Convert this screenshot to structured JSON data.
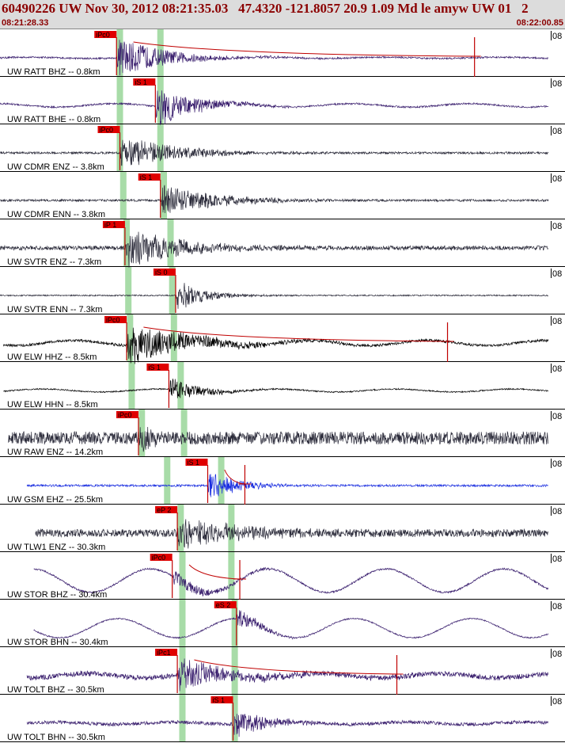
{
  "header": {
    "title": "60490226 UW Nov 30, 2012 08:21:35.03   47.4320 -121.8057 20.9 1.09 Md le amyw UW 01   2",
    "start_time": "08:21:28.33",
    "end_time": "08:22:00.85",
    "edge_label": "08"
  },
  "colors": {
    "trace": "#2b2b3a",
    "trace_purple": "#3a1f6e",
    "trace_blue": "#1a2ee0",
    "trace_black": "#000000",
    "pick_box": "#e00000",
    "pick_line": "#c00000",
    "phase_band": "#a8dca8",
    "coda_fit": "#c00000",
    "label_text": "#000000"
  },
  "chart_data": {
    "type": "line",
    "time_range": [
      "08:21:28.33",
      "08:22:00.85"
    ],
    "channels": [
      {
        "label": "UW RATT BHZ -- 0.8km",
        "color": "trace_purple",
        "pick_label": "iPc0",
        "pick_time": 6.9,
        "noise": 0.04,
        "amp": 1.0,
        "dur": 6.0,
        "long_period": 0.03,
        "coda": true,
        "coda_end": 28.1,
        "data_start": 0.0,
        "data_end": 32.5
      },
      {
        "label": "UW RATT BHE -- 0.8km",
        "color": "trace_purple",
        "pick_label": "iS 1",
        "pick_time": 9.2,
        "noise": 0.04,
        "amp": 1.0,
        "dur": 5.0,
        "long_period": 0.08,
        "coda": false,
        "data_start": 0.0,
        "data_end": 32.5
      },
      {
        "label": "UW CDMR ENZ -- 3.8km",
        "color": "trace",
        "pick_label": "iPc0",
        "pick_time": 7.1,
        "noise": 0.05,
        "amp": 0.85,
        "dur": 7.0,
        "long_period": 0.0,
        "coda": false,
        "data_start": 0.0,
        "data_end": 32.5
      },
      {
        "label": "UW CDMR ENN -- 3.8km",
        "color": "trace",
        "pick_label": "iS 1",
        "pick_time": 9.5,
        "noise": 0.05,
        "amp": 0.8,
        "dur": 7.0,
        "long_period": 0.0,
        "coda": false,
        "data_start": 0.0,
        "data_end": 32.5
      },
      {
        "label": "UW SVTR ENZ -- 7.3km",
        "color": "trace",
        "pick_label": "iP 1",
        "pick_time": 7.4,
        "noise": 0.1,
        "amp": 0.95,
        "dur": 7.0,
        "long_period": 0.0,
        "coda": false,
        "data_start": 0.0,
        "data_end": 32.5
      },
      {
        "label": "UW SVTR ENN -- 7.3km",
        "color": "trace",
        "pick_label": "iS 0",
        "pick_time": 10.4,
        "noise": 0.03,
        "amp": 0.8,
        "dur": 3.5,
        "long_period": 0.0,
        "coda": false,
        "data_start": 0.0,
        "data_end": 32.5
      },
      {
        "label": "UW ELW HHZ -- 8.5km",
        "color": "trace_black",
        "pick_label": "iPc0",
        "pick_time": 7.5,
        "noise": 0.06,
        "amp": 1.0,
        "dur": 8.0,
        "long_period": 0.12,
        "coda": true,
        "coda_end": 26.5,
        "data_start": 0.2,
        "data_end": 32.8
      },
      {
        "label": "UW ELW HHN -- 8.5km",
        "color": "trace_black",
        "pick_label": "iS 1",
        "pick_time": 10.0,
        "noise": 0.03,
        "amp": 0.6,
        "dur": 4.0,
        "long_period": 0.07,
        "coda": false,
        "data_start": 0.2,
        "data_end": 32.8
      },
      {
        "label": "UW RAW ENZ -- 14.2km",
        "color": "trace",
        "pick_label": "iPc0",
        "pick_time": 8.2,
        "noise": 0.3,
        "amp": 0.9,
        "dur": 1.5,
        "long_period": 0.0,
        "coda": false,
        "data_start": 0.5,
        "data_end": 33.2
      },
      {
        "label": "UW GSM EHZ -- 25.5km",
        "color": "trace_blue",
        "pick_label": "iS 1",
        "pick_time": 12.3,
        "noise": 0.05,
        "amp": 0.7,
        "dur": 4.0,
        "long_period": 0.0,
        "coda": true,
        "coda_end": 14.5,
        "data_start": 1.6,
        "data_end": 34.3
      },
      {
        "label": "UW TLW1 ENZ -- 30.3km",
        "color": "trace",
        "pick_label": "eP 2",
        "pick_time": 10.5,
        "noise": 0.18,
        "amp": 0.85,
        "dur": 7.0,
        "long_period": 0.0,
        "coda": false,
        "data_start": 2.1,
        "data_end": 34.6
      },
      {
        "label": "UW STOR BHZ -- 30.4km",
        "color": "trace_purple",
        "pick_label": "iPc0",
        "pick_time": 10.2,
        "noise": 0.04,
        "amp": 0.4,
        "dur": 5.0,
        "long_period": 0.55,
        "coda": true,
        "coda_end": 14.2,
        "data_start": 2.0,
        "data_end": 34.6
      },
      {
        "label": "UW STOR BHN -- 30.4km",
        "color": "trace_purple",
        "pick_label": "eS 2",
        "pick_time": 14.0,
        "noise": 0.03,
        "amp": 0.5,
        "dur": 3.0,
        "long_period": 0.45,
        "coda": false,
        "data_start": 2.0,
        "data_end": 34.6
      },
      {
        "label": "UW TOLT BHZ -- 30.5km",
        "color": "trace_purple",
        "pick_label": "iPc1",
        "pick_time": 10.5,
        "noise": 0.12,
        "amp": 0.75,
        "dur": 7.0,
        "long_period": 0.1,
        "coda": true,
        "coda_end": 23.5,
        "data_start": 1.6,
        "data_end": 34.6
      },
      {
        "label": "UW TOLT BHN -- 30.5km",
        "color": "trace_purple",
        "pick_label": "iS 1",
        "pick_time": 13.8,
        "noise": 0.08,
        "amp": 0.7,
        "dur": 4.0,
        "long_period": 0.05,
        "coda": false,
        "data_start": 1.6,
        "data_end": 34.6
      }
    ],
    "phase_bands": [
      {
        "channel": 0,
        "times": [
          7.1,
          9.5
        ]
      },
      {
        "channel": 1,
        "times": [
          7.1,
          9.5
        ]
      },
      {
        "channel": 2,
        "times": [
          7.1,
          9.5
        ]
      },
      {
        "channel": 3,
        "times": [
          7.3,
          9.7
        ]
      },
      {
        "channel": 4,
        "times": [
          7.5,
          10.1
        ]
      },
      {
        "channel": 5,
        "times": [
          7.6,
          10.2
        ]
      },
      {
        "channel": 6,
        "times": [
          7.7,
          10.3
        ]
      },
      {
        "channel": 7,
        "times": [
          7.8,
          10.7
        ]
      },
      {
        "channel": 8,
        "times": [
          8.4,
          10.9
        ]
      },
      {
        "channel": 9,
        "times": [
          9.9,
          13.1
        ]
      },
      {
        "channel": 10,
        "times": [
          10.7,
          13.7
        ]
      },
      {
        "channel": 11,
        "times": [
          10.8,
          13.7
        ]
      },
      {
        "channel": 12,
        "times": [
          10.8,
          13.9
        ]
      },
      {
        "channel": 13,
        "times": [
          10.8,
          13.9
        ]
      },
      {
        "channel": 14,
        "times": [
          10.8,
          13.9
        ]
      }
    ]
  }
}
